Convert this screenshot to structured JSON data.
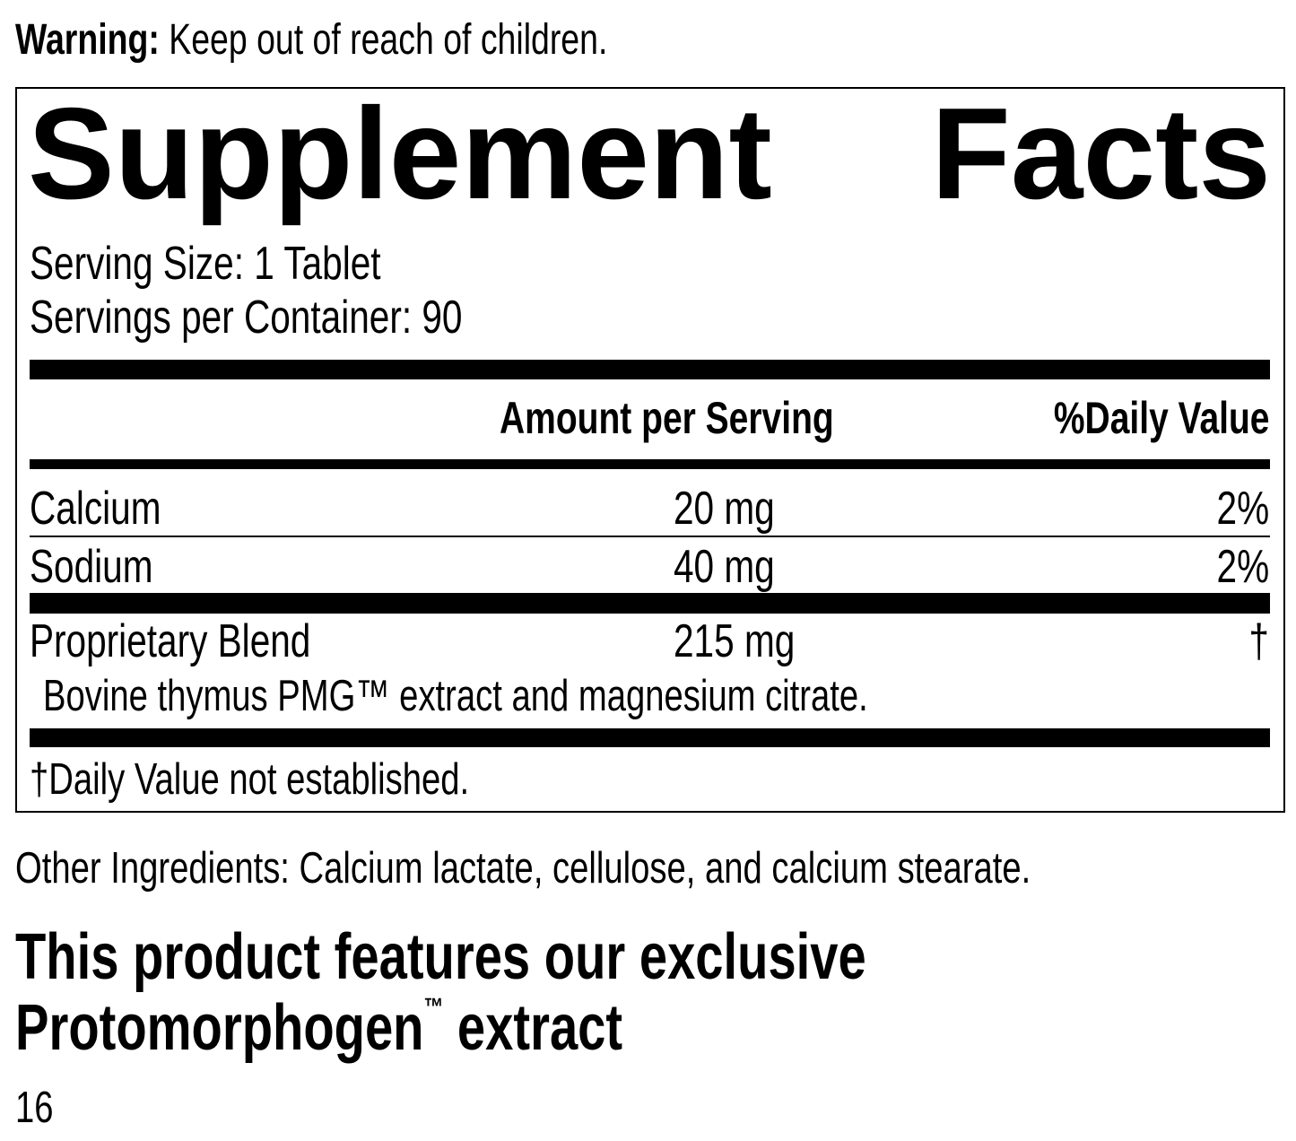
{
  "warning": {
    "label": "Warning:",
    "text": " Keep out of reach of children."
  },
  "facts": {
    "title_left": "Supplement",
    "title_right": "Facts",
    "serving_size": "Serving Size: 1 Tablet",
    "servings_per_container": "Servings per Container: 90",
    "header": {
      "amount": "Amount per Serving",
      "daily_value": "%Daily Value"
    },
    "rows": [
      {
        "name": "Calcium",
        "amount": "20 mg",
        "dv": "2%"
      },
      {
        "name": "Sodium",
        "amount": "40 mg",
        "dv": "2%"
      },
      {
        "name": "Proprietary Blend",
        "amount": "215 mg",
        "dv": "†"
      }
    ],
    "blend_description": "Bovine thymus PMG™ extract and magnesium citrate.",
    "footnote": "†Daily Value not established."
  },
  "other_ingredients": "Other Ingredients: Calcium lactate, cellulose, and calcium stearate.",
  "feature": {
    "line1": "This product features our exclusive",
    "line2_word": "Protomorphogen",
    "line2_tm": "™",
    "line2_rest": " extract"
  },
  "page_number": "16"
}
